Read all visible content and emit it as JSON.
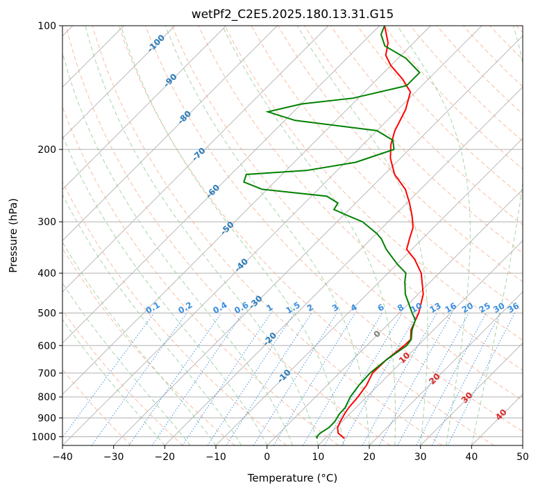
{
  "chart_data": {
    "type": "line",
    "subtype": "skew-t log-p",
    "title": "wetPf2_C2E5.2025.180.13.31.G15",
    "xlabel": "Temperature (°C)",
    "ylabel": "Pressure (hPa)",
    "xlim": [
      -40,
      50
    ],
    "ylim": [
      1050,
      100
    ],
    "y_scale": "log",
    "grid": true,
    "x_ticks": [
      -40,
      -30,
      -20,
      -10,
      0,
      10,
      20,
      30,
      40,
      50
    ],
    "y_ticks": [
      100,
      200,
      300,
      400,
      500,
      600,
      700,
      800,
      900,
      1000
    ],
    "series": [
      {
        "role": "temperature",
        "color": "#ff0000",
        "points": [
          {
            "p": 1010,
            "t": 13.8
          },
          {
            "p": 980,
            "t": 11.5
          },
          {
            "p": 950,
            "t": 10.3
          },
          {
            "p": 920,
            "t": 9.7
          },
          {
            "p": 880,
            "t": 9.0
          },
          {
            "p": 850,
            "t": 8.6
          },
          {
            "p": 800,
            "t": 8.3
          },
          {
            "p": 750,
            "t": 7.7
          },
          {
            "p": 700,
            "t": 6.5
          },
          {
            "p": 650,
            "t": 6.6
          },
          {
            "p": 600,
            "t": 7.3
          },
          {
            "p": 580,
            "t": 7.4
          },
          {
            "p": 550,
            "t": 5.6
          },
          {
            "p": 500,
            "t": 3.8
          },
          {
            "p": 450,
            "t": 1.0
          },
          {
            "p": 400,
            "t": -3.5
          },
          {
            "p": 370,
            "t": -7.5
          },
          {
            "p": 350,
            "t": -11.0
          },
          {
            "p": 330,
            "t": -12.5
          },
          {
            "p": 310,
            "t": -14.0
          },
          {
            "p": 290,
            "t": -16.5
          },
          {
            "p": 270,
            "t": -19.5
          },
          {
            "p": 250,
            "t": -23.0
          },
          {
            "p": 230,
            "t": -28.0
          },
          {
            "p": 210,
            "t": -32.0
          },
          {
            "p": 195,
            "t": -34.5
          },
          {
            "p": 180,
            "t": -36.5
          },
          {
            "p": 160,
            "t": -38.5
          },
          {
            "p": 145,
            "t": -41.0
          },
          {
            "p": 135,
            "t": -45.0
          },
          {
            "p": 125,
            "t": -50.0
          },
          {
            "p": 118,
            "t": -53.0
          },
          {
            "p": 110,
            "t": -55.0
          },
          {
            "p": 100,
            "t": -59.0
          }
        ]
      },
      {
        "role": "dewpoint",
        "color": "#008000",
        "points": [
          {
            "p": 1010,
            "t": 8.5
          },
          {
            "p": 1000,
            "t": 8.0
          },
          {
            "p": 980,
            "t": 8.0
          },
          {
            "p": 950,
            "t": 8.6
          },
          {
            "p": 920,
            "t": 8.6
          },
          {
            "p": 880,
            "t": 8.0
          },
          {
            "p": 850,
            "t": 7.9
          },
          {
            "p": 800,
            "t": 6.8
          },
          {
            "p": 750,
            "t": 6.2
          },
          {
            "p": 700,
            "t": 6.0
          },
          {
            "p": 650,
            "t": 6.6
          },
          {
            "p": 600,
            "t": 7.8
          },
          {
            "p": 580,
            "t": 7.5
          },
          {
            "p": 550,
            "t": 5.8
          },
          {
            "p": 520,
            "t": 4.5
          },
          {
            "p": 500,
            "t": 2.5
          },
          {
            "p": 450,
            "t": -2.5
          },
          {
            "p": 420,
            "t": -5.0
          },
          {
            "p": 400,
            "t": -6.5
          },
          {
            "p": 380,
            "t": -10.0
          },
          {
            "p": 350,
            "t": -15.0
          },
          {
            "p": 330,
            "t": -18.0
          },
          {
            "p": 320,
            "t": -20.0
          },
          {
            "p": 300,
            "t": -25.0
          },
          {
            "p": 290,
            "t": -29.0
          },
          {
            "p": 280,
            "t": -33.0
          },
          {
            "p": 270,
            "t": -33.5
          },
          {
            "p": 260,
            "t": -37.0
          },
          {
            "p": 250,
            "t": -51.0
          },
          {
            "p": 240,
            "t": -56.0
          },
          {
            "p": 230,
            "t": -57.0
          },
          {
            "p": 225,
            "t": -46.0
          },
          {
            "p": 215,
            "t": -38.0
          },
          {
            "p": 200,
            "t": -33.0
          },
          {
            "p": 190,
            "t": -35.0
          },
          {
            "p": 180,
            "t": -40.0
          },
          {
            "p": 170,
            "t": -58.0
          },
          {
            "p": 162,
            "t": -65.0
          },
          {
            "p": 155,
            "t": -60.0
          },
          {
            "p": 150,
            "t": -51.0
          },
          {
            "p": 140,
            "t": -43.0
          },
          {
            "p": 130,
            "t": -43.0
          },
          {
            "p": 120,
            "t": -48.5
          },
          {
            "p": 112,
            "t": -55.0
          },
          {
            "p": 105,
            "t": -58.0
          },
          {
            "p": 100,
            "t": -59.0
          }
        ]
      }
    ],
    "dry_adiabat_labels": [],
    "dry_adiabat_values": [
      -100,
      -90,
      -80,
      -70,
      -60,
      -50,
      -40,
      -30,
      -20,
      -10
    ],
    "dry_adiabat_label_texts": [
      "-100",
      "-90",
      "-80",
      "-70",
      "-60",
      "-50",
      "-40",
      "-30",
      "-20",
      "-10"
    ],
    "mixing_ratio_values": [
      0.1,
      0.2,
      0.4,
      0.6,
      1,
      1.5,
      2,
      3,
      4,
      6,
      8,
      10,
      13,
      16,
      20,
      25,
      30,
      36
    ],
    "mixing_ratio_label_texts": [
      "0.1",
      "0.2",
      "0.4",
      "0.6",
      "1",
      "1.5",
      "2",
      "3",
      "4",
      "6",
      "8",
      "10",
      "13",
      "16",
      "20",
      "25",
      "30",
      "36"
    ],
    "moist_adiabat_values": [
      0,
      10,
      20,
      30,
      40
    ],
    "moist_adiabat_label_texts": [
      "0",
      "10",
      "20",
      "30",
      "40"
    ],
    "colors": {
      "isotherm": "#b0b0b0",
      "dry_adiabat": "#f4a582",
      "moist_adiabat": "#8fc98f",
      "mixing_ratio": "#3b8fe0",
      "dry_label": "#2b7bba",
      "moist_label": "#d62728",
      "moist_zero_label": "#808080",
      "isobar": "#b0b0b0"
    }
  }
}
